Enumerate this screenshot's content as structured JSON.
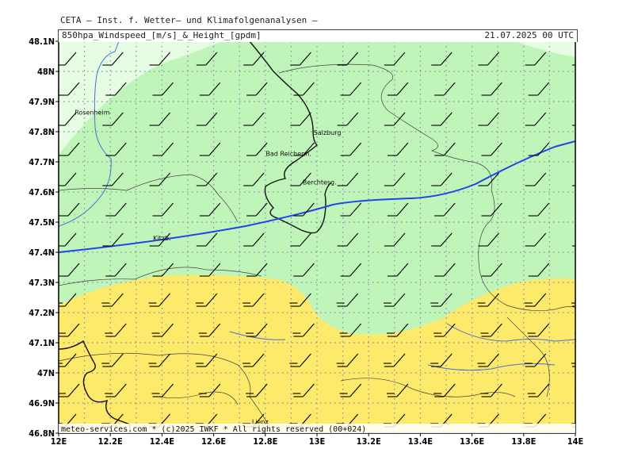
{
  "header": {
    "source_line": "CETA – Inst. f. Wetter– und Klimafolgenanalysen –",
    "product_line": "850hpa_Windspeed_[m/s]_&_Height_[gpdm]",
    "timestamp": "21.07.2025 00 UTC"
  },
  "footer": {
    "copyright": "meteo-services.com * (c)2025 IWKF * All rights reserved (00+024)"
  },
  "map": {
    "lon_range": [
      12.0,
      14.0
    ],
    "lat_range": [
      46.8,
      48.1
    ],
    "lat_ticks": [
      "48.1N",
      "48N",
      "47.9N",
      "47.8N",
      "47.7N",
      "47.6N",
      "47.5N",
      "47.4N",
      "47.3N",
      "47.2N",
      "47.1N",
      "47N",
      "46.9N",
      "46.8N"
    ],
    "lon_ticks": [
      "12E",
      "12.2E",
      "12.4E",
      "12.6E",
      "12.8E",
      "13E",
      "13.2E",
      "13.4E",
      "13.6E",
      "13.8E",
      "14E"
    ],
    "places": [
      {
        "name": "Rosenheim",
        "lon": 12.13,
        "lat": 47.856
      },
      {
        "name": "Salzburg",
        "lon": 13.04,
        "lat": 47.79
      },
      {
        "name": "Bad Reichenh.",
        "lon": 12.89,
        "lat": 47.72
      },
      {
        "name": "Berchtesg.",
        "lon": 13.01,
        "lat": 47.625
      },
      {
        "name": "Kitzb.",
        "lon": 12.4,
        "lat": 47.44
      },
      {
        "name": "Lienz",
        "lon": 12.78,
        "lat": 46.83
      }
    ],
    "colors": {
      "very_light_green": "#e6fde3",
      "light_green": "#bff5b9",
      "yellow": "#fde96a",
      "height_contour": "#2244ee",
      "river": "#4a6fd8",
      "border": "#111111",
      "grid": "#8888aa"
    }
  }
}
